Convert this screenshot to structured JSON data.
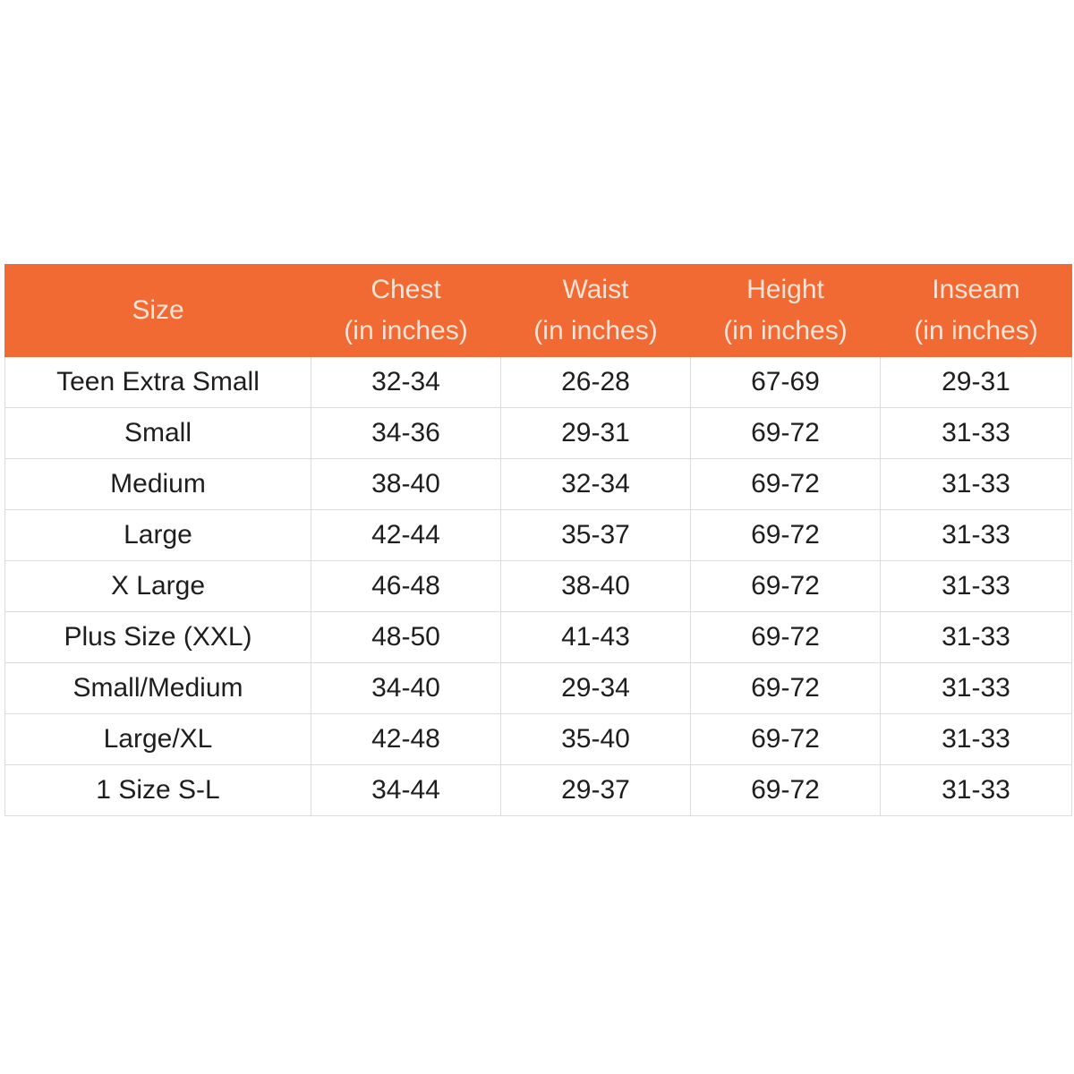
{
  "table": {
    "header": [
      {
        "title": "Size"
      },
      {
        "title": "Chest",
        "unit": "(in inches)"
      },
      {
        "title": "Waist",
        "unit": "(in inches)"
      },
      {
        "title": "Height",
        "unit": "(in inches)"
      },
      {
        "title": "Inseam",
        "unit": "(in inches)"
      }
    ],
    "rows": [
      [
        "Teen Extra Small",
        "32-34",
        "26-28",
        "67-69",
        "29-31"
      ],
      [
        "Small",
        "34-36",
        "29-31",
        "69-72",
        "31-33"
      ],
      [
        "Medium",
        "38-40",
        "32-34",
        "69-72",
        "31-33"
      ],
      [
        "Large",
        "42-44",
        "35-37",
        "69-72",
        "31-33"
      ],
      [
        "X Large",
        "46-48",
        "38-40",
        "69-72",
        "31-33"
      ],
      [
        "Plus Size (XXL)",
        "48-50",
        "41-43",
        "69-72",
        "31-33"
      ],
      [
        "Small/Medium",
        "34-40",
        "29-34",
        "69-72",
        "31-33"
      ],
      [
        "Large/XL",
        "42-48",
        "35-40",
        "69-72",
        "31-33"
      ],
      [
        "1 Size S-L",
        "34-44",
        "29-37",
        "69-72",
        "31-33"
      ]
    ]
  }
}
